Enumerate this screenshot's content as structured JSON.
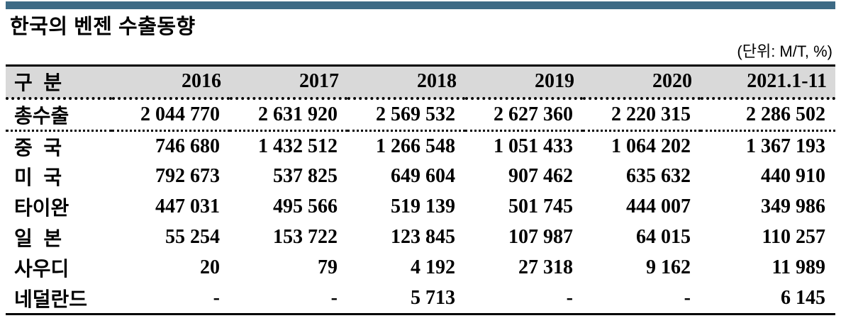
{
  "page": {
    "accent_bar_color": "#3d6a85",
    "header_bg_color": "#d9d9d9",
    "title": "한국의 벤젠 수출동향",
    "unit_note": "(단위: M/T, %)"
  },
  "chart_data": {
    "type": "table",
    "title": "한국의 벤젠 수출동향",
    "unit": "M/T, %",
    "columns": [
      "구  분",
      "2016",
      "2017",
      "2018",
      "2019",
      "2020",
      "2021.1-11"
    ],
    "rows": [
      {
        "label": "총수출",
        "values": [
          "2 044 770",
          "2 631 920",
          "2 569 532",
          "2 627 360",
          "2 220 315",
          "2 286 502"
        ]
      },
      {
        "label": "중  국",
        "values": [
          "746 680",
          "1 432 512",
          "1 266 548",
          "1 051 433",
          "1 064 202",
          "1 367 193"
        ]
      },
      {
        "label": "미  국",
        "values": [
          "792 673",
          "537 825",
          "649 604",
          "907 462",
          "635 632",
          "440 910"
        ]
      },
      {
        "label": "타이완",
        "values": [
          "447 031",
          "495 566",
          "519 139",
          "501 745",
          "444 007",
          "349 986"
        ]
      },
      {
        "label": "일  본",
        "values": [
          "55 254",
          "153 722",
          "123 845",
          "107 987",
          "64 015",
          "110 257"
        ]
      },
      {
        "label": "사우디",
        "values": [
          "20",
          "79",
          "4 192",
          "27 318",
          "9 162",
          "11 989"
        ]
      },
      {
        "label": "네덜란드",
        "values": [
          "-",
          "-",
          "5 713",
          "-",
          "-",
          "6 145"
        ]
      }
    ]
  }
}
